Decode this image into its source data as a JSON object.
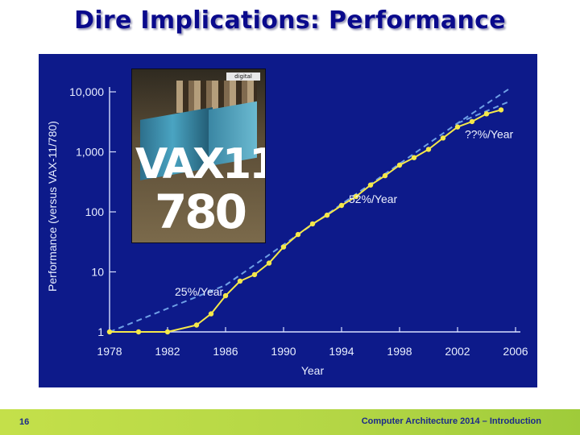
{
  "slide": {
    "title": "Dire Implications: Performance",
    "page_number": "16",
    "course": "Computer Architecture 2014 – Introduction"
  },
  "photo": {
    "logo_text": "digital",
    "text_line1": "VAX11",
    "text_line2": "780"
  },
  "colors": {
    "title": "#0a0a8c",
    "panel": "#0d1a8a",
    "series": "#f5e84a",
    "trend": "#6fa0e6",
    "footer": "#b3d645"
  },
  "chart_data": {
    "type": "line",
    "title": "",
    "xlabel": "Year",
    "ylabel": "Performance (versus VAX-11/780)",
    "yscale": "log",
    "xlim": [
      1978,
      2006
    ],
    "ylim": [
      1,
      10000
    ],
    "x_ticks": [
      "1978",
      "1982",
      "1986",
      "1990",
      "1994",
      "1998",
      "2002",
      "2006"
    ],
    "y_ticks": [
      {
        "value": 1,
        "label": "1"
      },
      {
        "value": 10,
        "label": "10"
      },
      {
        "value": 100,
        "label": "100"
      },
      {
        "value": 1000,
        "label": "1,000"
      },
      {
        "value": 10000,
        "label": "10,000"
      }
    ],
    "series": [
      {
        "name": "",
        "style": "solid-with-markers",
        "points": [
          [
            1978,
            1
          ],
          [
            1980,
            1
          ],
          [
            1982,
            1
          ],
          [
            1984,
            1.3
          ],
          [
            1985,
            2
          ],
          [
            1986,
            4
          ],
          [
            1987,
            7
          ],
          [
            1988,
            9
          ],
          [
            1989,
            14
          ],
          [
            1990,
            26
          ],
          [
            1991,
            42
          ],
          [
            1992,
            63
          ],
          [
            1993,
            88
          ],
          [
            1994,
            128
          ],
          [
            1995,
            180
          ],
          [
            1996,
            280
          ],
          [
            1997,
            400
          ],
          [
            1998,
            600
          ],
          [
            1999,
            800
          ],
          [
            2000,
            1100
          ],
          [
            2001,
            1700
          ],
          [
            2002,
            2600
          ],
          [
            2003,
            3200
          ],
          [
            2004,
            4300
          ],
          [
            2005,
            5000
          ]
        ]
      },
      {
        "name": "",
        "style": "dashed-trend",
        "points": [
          [
            1978,
            1
          ],
          [
            1986,
            6
          ]
        ]
      },
      {
        "name": "",
        "style": "dashed-trend",
        "points": [
          [
            1986,
            6
          ],
          [
            2002,
            3000
          ],
          [
            2005.5,
            11000
          ]
        ]
      },
      {
        "name": "",
        "style": "dashed-trend",
        "points": [
          [
            2002,
            3000
          ],
          [
            2005.5,
            6800
          ]
        ]
      }
    ],
    "annotations": [
      {
        "text": "25%/Year",
        "x": 1982.5,
        "y": 4
      },
      {
        "text": "52%/Year",
        "x": 1994.5,
        "y": 140
      },
      {
        "text": "??%/Year",
        "x": 2002.5,
        "y": 1700
      }
    ]
  }
}
